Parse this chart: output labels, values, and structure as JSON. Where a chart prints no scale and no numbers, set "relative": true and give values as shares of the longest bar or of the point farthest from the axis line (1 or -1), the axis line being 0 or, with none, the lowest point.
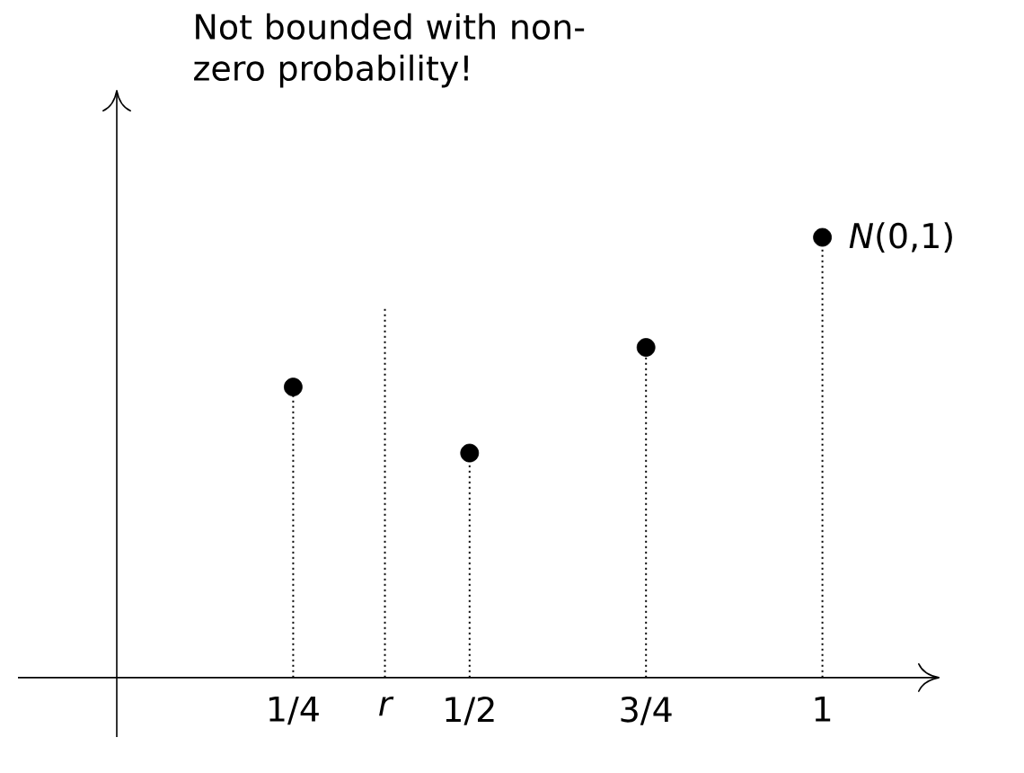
{
  "chart_data": {
    "type": "lollipop",
    "relative": true,
    "x": [
      0.25,
      0.5,
      0.75,
      1
    ],
    "series": [
      {
        "name": "*N*(0,1)",
        "color": "#000000",
        "values": [
          0.66,
          0.51,
          0.75,
          1
        ]
      }
    ],
    "xlim": [
      -0.14,
      1.166
    ],
    "xticks": [
      {
        "value": 0.25,
        "label": "1/4"
      },
      {
        "value": 0.5,
        "label": "1/2"
      },
      {
        "value": 0.75,
        "label": "3/4"
      },
      1
    ],
    "ref_lines": [
      {
        "axis": "x",
        "value": 0.38,
        "label": "r",
        "line_style": "dotted"
      }
    ],
    "annotations": [
      "Not bounded with non-zero probability!"
    ],
    "marker": "circle",
    "line_style": "dotted",
    "legend": false
  }
}
